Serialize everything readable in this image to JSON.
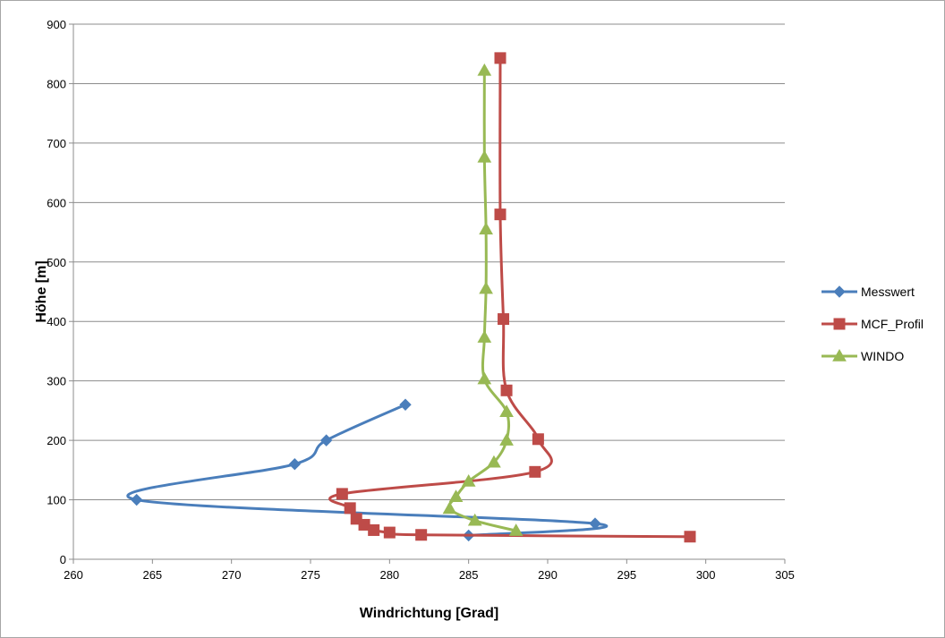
{
  "chart_data": {
    "type": "scatter",
    "title": "",
    "xlabel": "Windrichtung [Grad]",
    "ylabel": "Höhe [m]",
    "xlim": [
      260,
      305
    ],
    "ylim": [
      0,
      900
    ],
    "xticks": [
      260,
      265,
      270,
      275,
      280,
      285,
      290,
      295,
      300,
      305
    ],
    "yticks": [
      0,
      100,
      200,
      300,
      400,
      500,
      600,
      700,
      800,
      900
    ],
    "grid": "horizontal",
    "legend_position": "right",
    "line_style": "smoothed-with-markers",
    "series": [
      {
        "name": "Messwert",
        "color": "#4a7ebb",
        "marker": "diamond",
        "points": [
          [
            281,
            260
          ],
          [
            276,
            200
          ],
          [
            274,
            160
          ],
          [
            264,
            100
          ],
          [
            293,
            60
          ],
          [
            285,
            40
          ]
        ]
      },
      {
        "name": "MCF_Profil",
        "color": "#be4b48",
        "marker": "square",
        "points": [
          [
            287,
            843
          ],
          [
            287,
            580
          ],
          [
            287.2,
            404
          ],
          [
            287.4,
            284
          ],
          [
            289.4,
            202
          ],
          [
            289.2,
            147
          ],
          [
            277,
            110
          ],
          [
            277.5,
            86
          ],
          [
            277.9,
            68
          ],
          [
            278.4,
            58
          ],
          [
            279,
            49
          ],
          [
            280,
            45
          ],
          [
            282,
            41
          ],
          [
            299,
            38
          ]
        ]
      },
      {
        "name": "WINDO",
        "color": "#98b954",
        "marker": "triangle",
        "points": [
          [
            286,
            822
          ],
          [
            286,
            676
          ],
          [
            286.1,
            555
          ],
          [
            286.1,
            455
          ],
          [
            286,
            373
          ],
          [
            286,
            303
          ],
          [
            287.4,
            248
          ],
          [
            287.4,
            200
          ],
          [
            286.6,
            163
          ],
          [
            285,
            131
          ],
          [
            284.2,
            105
          ],
          [
            283.8,
            85
          ],
          [
            285.4,
            65
          ],
          [
            288,
            48
          ]
        ]
      }
    ]
  }
}
